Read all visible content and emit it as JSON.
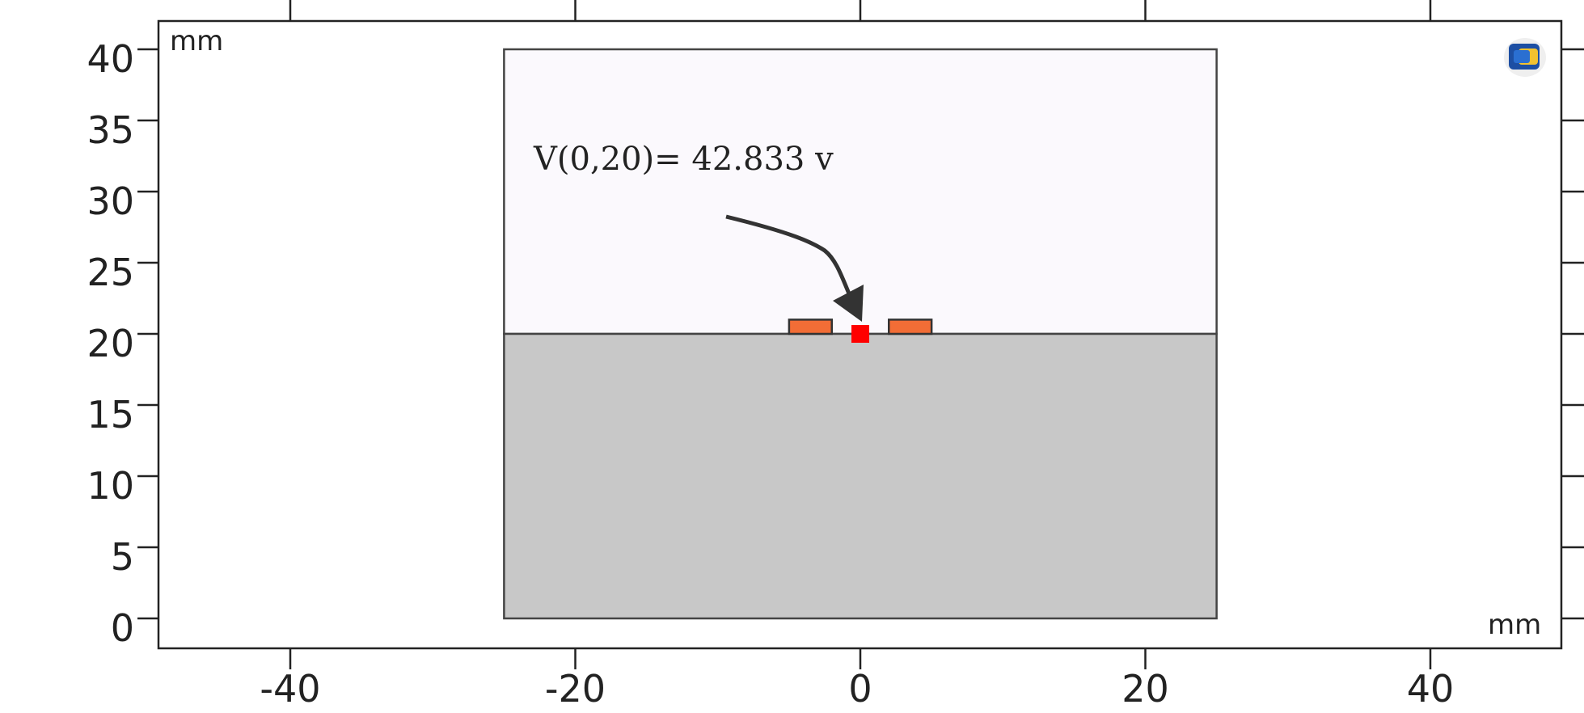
{
  "plot": {
    "units": {
      "y_top": "mm",
      "x_bottom": "mm"
    },
    "x_ticks": [
      "-40",
      "-20",
      "0",
      "20",
      "40"
    ],
    "y_ticks": [
      "0",
      "5",
      "10",
      "15",
      "20",
      "25",
      "30",
      "35",
      "40"
    ],
    "annotation": "V(0,20)= 42.833 v",
    "logo_icon": "comsol-logo-icon"
  },
  "geometry": {
    "air_region": {
      "x_range": [
        -25,
        25
      ],
      "y_range": [
        20,
        40
      ],
      "color": "#fbf9fd"
    },
    "substrate_region": {
      "x_range": [
        -25,
        25
      ],
      "y_range": [
        0,
        20
      ],
      "color": "#c8c8c8"
    },
    "electrodes": [
      {
        "name": "left-electrode",
        "x_range": [
          -5,
          -2
        ],
        "y_range": [
          20,
          21
        ],
        "color": "#f26d36"
      },
      {
        "name": "right-electrode",
        "x_range": [
          2,
          5
        ],
        "y_range": [
          20,
          21
        ],
        "color": "#f26d36"
      }
    ],
    "probe_point": {
      "x": 0,
      "y": 20,
      "color": "#ff0000"
    }
  }
}
